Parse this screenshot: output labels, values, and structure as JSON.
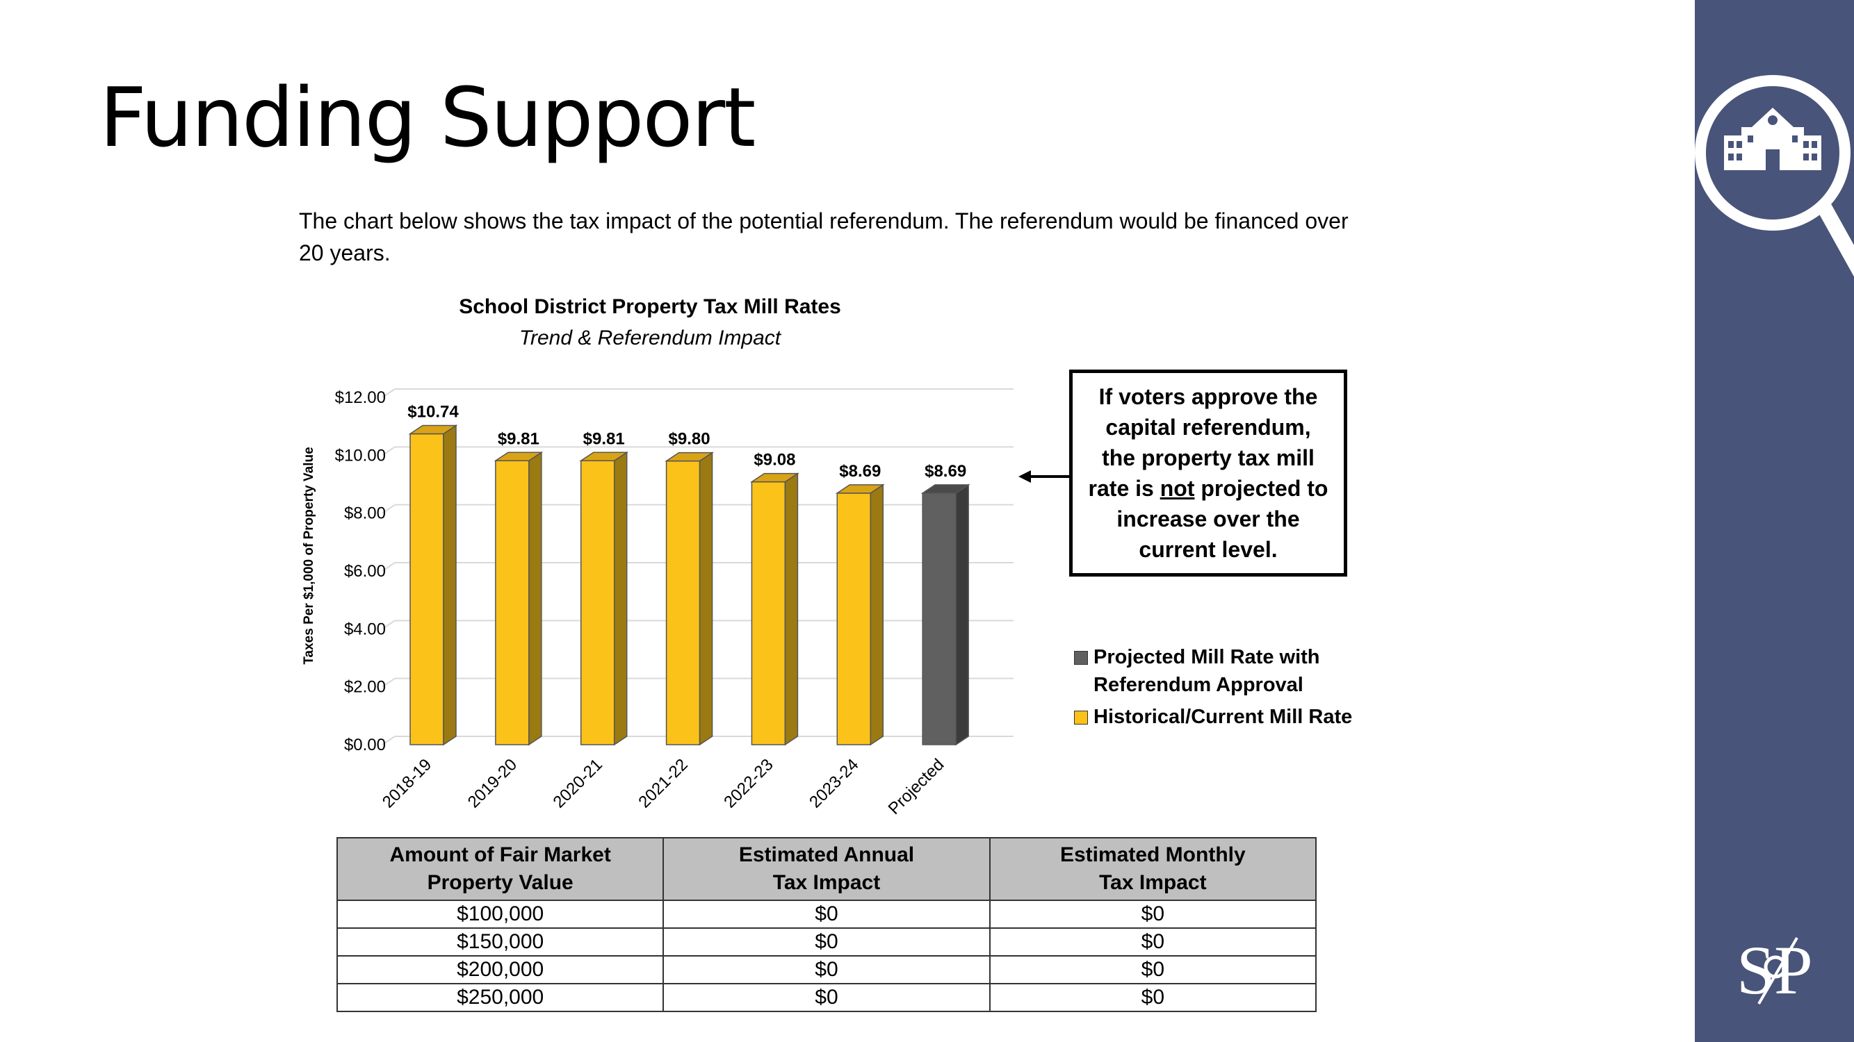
{
  "page": {
    "title": "Funding Support",
    "intro": "The chart below shows the tax impact of the potential referendum. The referendum would be financed over 20 years."
  },
  "colors": {
    "sidebar": "#485479",
    "historical": "#FBC21A",
    "projected": "#606060"
  },
  "icons": {
    "sidebar_icon": "magnifier-school-icon",
    "brand": "sp-logo"
  },
  "chart_data": {
    "type": "bar",
    "title": "School District Property Tax Mill Rates",
    "subtitle": "Trend & Referendum Impact",
    "ylabel": "Taxes Per $1,000  of Property Value",
    "ylim": [
      0,
      12
    ],
    "yticks": [
      "$0.00",
      "$2.00",
      "$4.00",
      "$6.00",
      "$8.00",
      "$10.00",
      "$12.00"
    ],
    "categories": [
      "2018-19",
      "2019-20",
      "2020-21",
      "2021-22",
      "2022-23",
      "2023-24",
      "Projected"
    ],
    "values": [
      10.74,
      9.81,
      9.81,
      9.8,
      9.08,
      8.69,
      8.69
    ],
    "labels": [
      "$10.74",
      "$9.81",
      "$9.81",
      "$9.80",
      "$9.08",
      "$8.69",
      "$8.69"
    ],
    "series_type": [
      "historical",
      "historical",
      "historical",
      "historical",
      "historical",
      "historical",
      "projected"
    ],
    "grid": true,
    "legend_position": "right",
    "legend": [
      {
        "name": "Projected Mill Rate with Referendum Approval",
        "line1": "Projected Mill Rate with",
        "line2": "Referendum Approval",
        "color": "#606060"
      },
      {
        "name": "Historical/Current Mill Rate",
        "line1": "Historical/Current Mill Rate",
        "line2": "",
        "color": "#FBC21A"
      }
    ]
  },
  "callout": {
    "line1": "If voters approve the",
    "line2": "capital referendum,",
    "line3": "the property tax mill",
    "line4_pre": "rate is ",
    "line4_u": "not",
    "line4_post": " projected to",
    "line5": "increase over the",
    "line6": "current level."
  },
  "table": {
    "headers": [
      {
        "line1": "Amount of Fair Market",
        "line2": "Property Value"
      },
      {
        "line1": "Estimated Annual",
        "line2": "Tax Impact"
      },
      {
        "line1": "Estimated Monthly",
        "line2": "Tax Impact"
      }
    ],
    "rows": [
      [
        "$100,000",
        "$0",
        "$0"
      ],
      [
        "$150,000",
        "$0",
        "$0"
      ],
      [
        "$200,000",
        "$0",
        "$0"
      ],
      [
        "$250,000",
        "$0",
        "$0"
      ]
    ]
  }
}
